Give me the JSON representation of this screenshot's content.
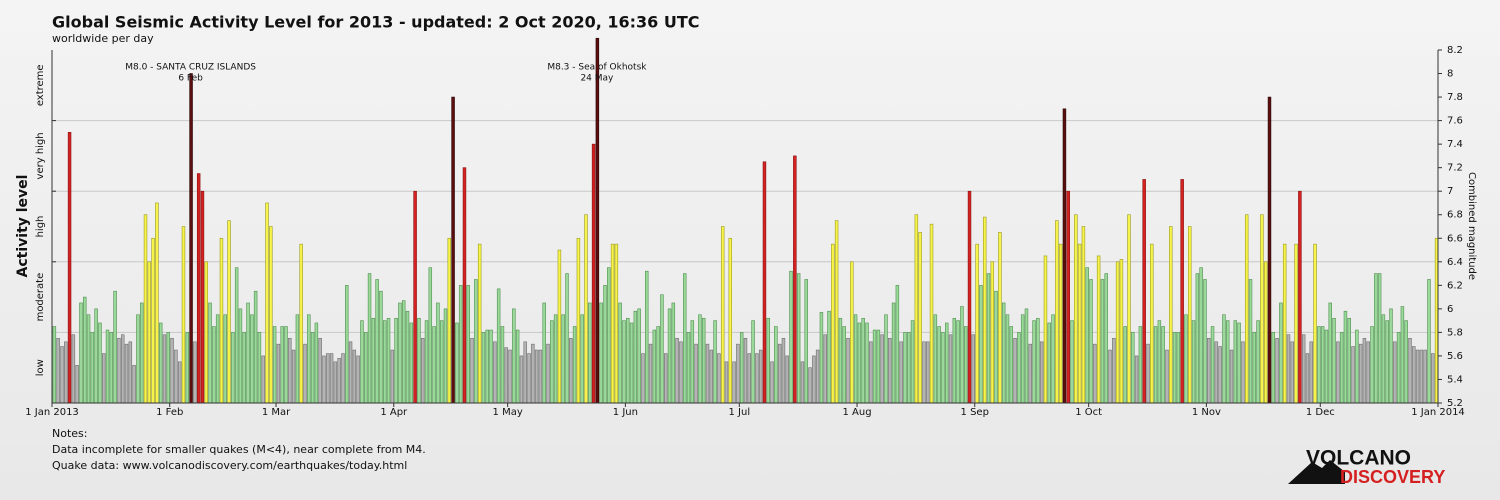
{
  "chart_data": {
    "type": "daily-bar",
    "title": "Global Seismic Activity Level for 2013 - updated:  2 Oct 2020, 16:36 UTC",
    "subtitle": "worldwide per day",
    "y_label": "Activity level",
    "y2_label": "Combined magnitude",
    "bands": [
      {
        "name": "low",
        "range": [
          5.2,
          5.8
        ],
        "color": "#b4b4b4",
        "stroke": "#6e6e6e"
      },
      {
        "name": "moderate",
        "range": [
          5.8,
          6.4
        ],
        "color": "#9ad99a",
        "stroke": "#4f8f4f"
      },
      {
        "name": "high",
        "range": [
          6.4,
          7
        ],
        "color": "#f6f44a",
        "stroke": "#9c9a20"
      },
      {
        "name": "very high",
        "range": [
          7,
          7.6
        ],
        "color": "#d42222",
        "stroke": "#8a1010"
      },
      {
        "name": "extreme",
        "range": [
          7.6,
          8.2
        ],
        "color": "#5c0e0e",
        "stroke": "#2a0505"
      }
    ],
    "xlim": [
      0,
      365
    ],
    "xticks": [
      {
        "value": 0,
        "label": "1 Jan 2013"
      },
      {
        "value": 31,
        "label": "1 Feb"
      },
      {
        "value": 59,
        "label": "1 Mar"
      },
      {
        "value": 90,
        "label": "1 Apr"
      },
      {
        "value": 120,
        "label": "1 May"
      },
      {
        "value": 151,
        "label": "1 Jun"
      },
      {
        "value": 181,
        "label": "1 Jul"
      },
      {
        "value": 212,
        "label": "1 Aug"
      },
      {
        "value": 243,
        "label": "1 Sep"
      },
      {
        "value": 273,
        "label": "1 Oct"
      },
      {
        "value": 304,
        "label": "1 Nov"
      },
      {
        "value": 334,
        "label": "1 Dec"
      },
      {
        "value": 365,
        "label": "1 Jan 2014"
      }
    ],
    "ylim": [
      5.2,
      8.2
    ],
    "yticks": [
      5.2,
      5.4,
      5.6,
      5.8,
      6,
      6.2,
      6.4,
      6.6,
      6.8,
      7,
      7.2,
      7.4,
      7.6,
      7.8,
      8,
      8.2
    ],
    "x": [
      0,
      1,
      2,
      3,
      4,
      5,
      6,
      7,
      8,
      9,
      10,
      11,
      12,
      13,
      14,
      15,
      16,
      17,
      18,
      19,
      20,
      21,
      22,
      23,
      24,
      25,
      26,
      27,
      28,
      29,
      30,
      31,
      32,
      33,
      34,
      35,
      36,
      37,
      38,
      39,
      40,
      41,
      42,
      43,
      44,
      45,
      46,
      47,
      48,
      49,
      50,
      51,
      52,
      53,
      54,
      55,
      56,
      57,
      58,
      59,
      60,
      61,
      62,
      63,
      64,
      65,
      66,
      67,
      68,
      69,
      70,
      71,
      72,
      73,
      74,
      75,
      76,
      77,
      78,
      79,
      80,
      81,
      82,
      83,
      84,
      85,
      86,
      87,
      88,
      89,
      90,
      91,
      92,
      93,
      94,
      95,
      96,
      97,
      98,
      99,
      100,
      101,
      102,
      103,
      104,
      105,
      106,
      107,
      108,
      109,
      110,
      111,
      112,
      113,
      114,
      115,
      116,
      117,
      118,
      119,
      120,
      121,
      122,
      123,
      124,
      125,
      126,
      127,
      128,
      129,
      130,
      131,
      132,
      133,
      134,
      135,
      136,
      137,
      138,
      139,
      140,
      141,
      142,
      143,
      144,
      145,
      146,
      147,
      148,
      149,
      150,
      151,
      152,
      153,
      154,
      155,
      156,
      157,
      158,
      159,
      160,
      161,
      162,
      163,
      164,
      165,
      166,
      167,
      168,
      169,
      170,
      171,
      172,
      173,
      174,
      175,
      176,
      177,
      178,
      179,
      180,
      181,
      182,
      183,
      184,
      185,
      186,
      187,
      188,
      189,
      190,
      191,
      192,
      193,
      194,
      195,
      196,
      197,
      198,
      199,
      200,
      201,
      202,
      203,
      204,
      205,
      206,
      207,
      208,
      209,
      210,
      211,
      212,
      213,
      214,
      215,
      216,
      217,
      218,
      219,
      220,
      221,
      222,
      223,
      224,
      225,
      226,
      227,
      228,
      229,
      230,
      231,
      232,
      233,
      234,
      235,
      236,
      237,
      238,
      239,
      240,
      241,
      242,
      243,
      244,
      245,
      246,
      247,
      248,
      249,
      250,
      251,
      252,
      253,
      254,
      255,
      256,
      257,
      258,
      259,
      260,
      261,
      262,
      263,
      264,
      265,
      266,
      267,
      268,
      269,
      270,
      271,
      272,
      273,
      274,
      275,
      276,
      277,
      278,
      279,
      280,
      281,
      282,
      283,
      284,
      285,
      286,
      287,
      288,
      289,
      290,
      291,
      292,
      293,
      294,
      295,
      296,
      297,
      298,
      299,
      300,
      301,
      302,
      303,
      304,
      305,
      306,
      307,
      308,
      309,
      310,
      311,
      312,
      313,
      314,
      315,
      316,
      317,
      318,
      319,
      320,
      321,
      322,
      323,
      324,
      325,
      326,
      327,
      328,
      329,
      330,
      331,
      332,
      333,
      334,
      335,
      336,
      337,
      338,
      339,
      340,
      341,
      342,
      343,
      344,
      345,
      346,
      347,
      348,
      349,
      350,
      351,
      352,
      353,
      354,
      355,
      356,
      357,
      358,
      359,
      360,
      361,
      362,
      363,
      364
    ],
    "values": [
      5.85,
      5.75,
      5.68,
      5.72,
      7.5,
      5.78,
      5.52,
      6.05,
      6.1,
      5.95,
      5.8,
      6.0,
      5.88,
      5.62,
      5.82,
      5.8,
      6.15,
      5.75,
      5.78,
      5.7,
      5.72,
      5.52,
      5.95,
      6.05,
      6.8,
      6.4,
      6.6,
      6.9,
      5.88,
      5.78,
      5.8,
      5.75,
      5.65,
      5.55,
      6.7,
      5.8,
      8.0,
      5.72,
      7.15,
      7.0,
      6.4,
      6.05,
      5.85,
      5.95,
      6.6,
      5.95,
      6.75,
      5.8,
      6.35,
      6.0,
      5.8,
      6.05,
      5.95,
      6.15,
      5.8,
      5.6,
      6.9,
      6.7,
      5.85,
      5.7,
      5.85,
      5.85,
      5.75,
      5.65,
      5.95,
      6.55,
      5.7,
      5.95,
      5.8,
      5.88,
      5.75,
      5.6,
      5.62,
      5.62,
      5.55,
      5.58,
      5.62,
      6.2,
      5.72,
      5.65,
      5.6,
      5.9,
      5.8,
      6.3,
      5.92,
      6.25,
      6.15,
      5.9,
      5.92,
      5.65,
      5.92,
      6.05,
      6.07,
      5.98,
      5.88,
      7.0,
      5.92,
      5.75,
      5.9,
      6.35,
      5.85,
      6.05,
      5.9,
      6.0,
      6.6,
      7.8,
      5.88,
      6.2,
      7.2,
      6.2,
      5.75,
      6.25,
      6.55,
      5.8,
      5.82,
      5.82,
      5.72,
      6.17,
      5.85,
      5.67,
      5.65,
      6.0,
      5.82,
      5.6,
      5.72,
      5.62,
      5.7,
      5.65,
      5.65,
      6.05,
      5.7,
      5.9,
      5.95,
      6.5,
      5.95,
      6.3,
      5.75,
      5.85,
      6.6,
      5.95,
      6.8,
      6.05,
      7.4,
      8.3,
      6.05,
      6.2,
      6.35,
      6.55,
      6.55,
      6.05,
      5.9,
      5.92,
      5.88,
      5.98,
      6.0,
      5.62,
      6.32,
      5.7,
      5.82,
      5.85,
      6.12,
      5.62,
      6.0,
      6.05,
      5.75,
      5.72,
      6.3,
      5.8,
      5.9,
      5.7,
      5.95,
      5.92,
      5.7,
      5.65,
      5.9,
      5.62,
      6.7,
      5.55,
      6.6,
      5.55,
      5.7,
      5.8,
      5.75,
      5.62,
      5.9,
      5.62,
      5.65,
      7.25,
      5.92,
      5.55,
      5.85,
      5.7,
      5.75,
      5.6,
      6.32,
      7.3,
      6.3,
      5.55,
      6.25,
      5.5,
      5.6,
      5.65,
      5.97,
      5.78,
      5.98,
      6.55,
      6.75,
      5.92,
      5.85,
      5.75,
      6.4,
      5.95,
      5.88,
      5.92,
      5.88,
      5.72,
      5.82,
      5.82,
      5.78,
      5.95,
      5.75,
      6.05,
      6.2,
      5.72,
      5.8,
      5.8,
      5.9,
      6.8,
      6.65,
      5.72,
      5.72,
      6.72,
      5.95,
      5.85,
      5.8,
      5.88,
      5.78,
      5.92,
      5.9,
      6.02,
      5.85,
      7.0,
      5.78,
      6.55,
      6.2,
      6.78,
      6.3,
      6.4,
      6.15,
      6.65,
      6.05,
      5.95,
      5.85,
      5.75,
      5.8,
      5.95,
      6.0,
      5.7,
      5.9,
      5.92,
      5.72,
      6.45,
      5.88,
      5.95,
      6.75,
      6.55,
      7.7,
      7.0,
      5.9,
      6.8,
      6.55,
      6.7,
      6.35,
      6.25,
      5.7,
      6.45,
      6.25,
      6.3,
      5.65,
      5.75,
      6.4,
      6.42,
      5.85,
      6.8,
      5.8,
      5.6,
      5.85,
      7.1,
      5.7,
      6.55,
      5.85,
      5.9,
      5.85,
      5.65,
      6.7,
      5.8,
      5.8,
      7.1,
      5.95,
      6.7,
      5.9,
      6.3,
      6.35,
      6.25,
      5.75,
      5.85,
      5.72,
      5.68,
      5.95,
      5.9,
      5.65,
      5.9,
      5.88,
      5.72,
      6.8,
      6.25,
      5.8,
      5.9,
      6.8,
      6.4,
      7.8,
      5.8,
      5.75,
      6.05,
      6.55,
      5.78,
      5.72,
      6.55,
      7.0,
      5.78,
      5.62,
      5.72,
      6.55,
      5.85,
      5.85,
      5.82,
      6.05,
      5.92,
      5.72,
      5.8,
      5.98,
      5.92,
      5.68,
      5.82,
      5.7,
      5.75,
      5.72,
      5.85,
      6.3,
      6.3,
      5.95,
      5.9,
      6.0,
      5.72,
      5.8,
      6.02,
      5.9,
      5.75,
      5.68,
      5.65,
      5.65,
      5.65,
      6.25,
      5.62,
      6.6
    ],
    "annotations": [
      {
        "text": "M8.0 - SANTA CRUZ ISLANDS",
        "date": "6 Feb",
        "x": 36
      },
      {
        "text": "M8.3 - Sea of Okhotsk",
        "date": "24 May",
        "x": 143
      }
    ],
    "notes": [
      "Notes:",
      "Data incomplete for smaller quakes (M<4), near complete from M4.",
      "Quake data: www.volcanodiscovery.com/earthquakes/today.html"
    ]
  },
  "logo": {
    "top": "VOLCANO",
    "bottom": "DISCOVERY"
  }
}
